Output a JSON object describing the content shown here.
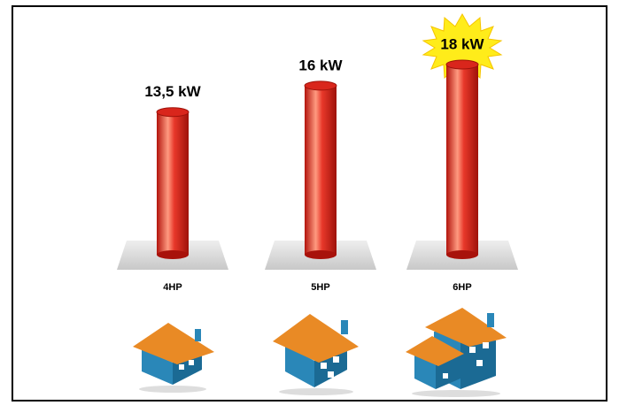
{
  "chart_data": {
    "type": "bar",
    "categories": [
      "4HP",
      "5HP",
      "6HP"
    ],
    "values": [
      13.5,
      16,
      18
    ],
    "value_labels": [
      "13,5 kW",
      "16 kW",
      "18 kW"
    ],
    "color": "#d9261c"
  }
}
